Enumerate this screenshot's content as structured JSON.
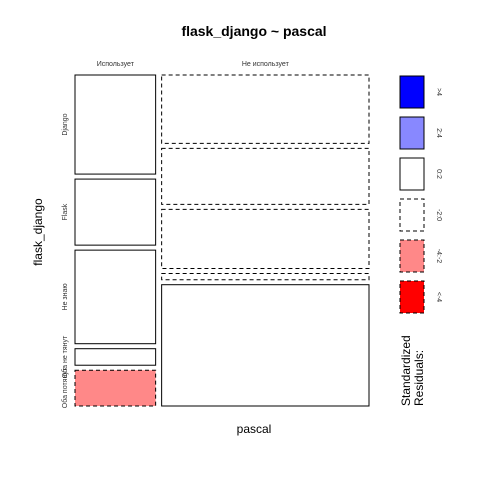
{
  "chart_data": {
    "type": "mosaic",
    "title": "flask_django ~ pascal",
    "xlabel": "pascal",
    "ylabel": "flask_django",
    "x_levels": [
      "Использует",
      "Не использует"
    ],
    "y_levels": [
      "Django",
      "Flask",
      "Не знаю",
      "Оба не тянут",
      "Оба потянут"
    ],
    "x_proportions": [
      0.28,
      0.72
    ],
    "cells": [
      {
        "x": "Использует",
        "y": "Django",
        "proportion": 0.36,
        "residual_class": "0:2"
      },
      {
        "x": "Использует",
        "y": "Flask",
        "proportion": 0.24,
        "residual_class": "0:2"
      },
      {
        "x": "Использует",
        "y": "Не знаю",
        "proportion": 0.34,
        "residual_class": "0:2"
      },
      {
        "x": "Использует",
        "y": "Оба не тянут",
        "proportion": 0.06,
        "residual_class": "0:2"
      },
      {
        "x": "Использует",
        "y": "Оба потянут",
        "proportion": 0.13,
        "residual_class": "-4:-2"
      },
      {
        "x": "Не использует",
        "y": "Django",
        "proportion": 0.22,
        "residual_class": "-2:0"
      },
      {
        "x": "Не использует",
        "y": "Flask",
        "proportion": 0.18,
        "residual_class": "-2:0"
      },
      {
        "x": "Не использует",
        "y": "Не знаю",
        "proportion": 0.19,
        "residual_class": "-2:0"
      },
      {
        "x": "Не использует",
        "y": "Оба не тянут",
        "proportion": 0.02,
        "residual_class": "-2:0"
      },
      {
        "x": "Не использует",
        "y": "Оба потянут",
        "proportion": 0.39,
        "residual_class": "0:2"
      }
    ],
    "legend": {
      "title": "Standardized Residuals:",
      "items": [
        {
          "label": ">4",
          "fill": "#0000FF",
          "dashed": false
        },
        {
          "label": "2:4",
          "fill": "#8888FF",
          "dashed": false
        },
        {
          "label": "0:2",
          "fill": "#FFFFFF",
          "dashed": false
        },
        {
          "label": "-2:0",
          "fill": "#FFFFFF",
          "dashed": true
        },
        {
          "label": "-4:-2",
          "fill": "#FF8888",
          "dashed": true
        },
        {
          "label": "<-4",
          "fill": "#FF0000",
          "dashed": true
        }
      ]
    }
  }
}
